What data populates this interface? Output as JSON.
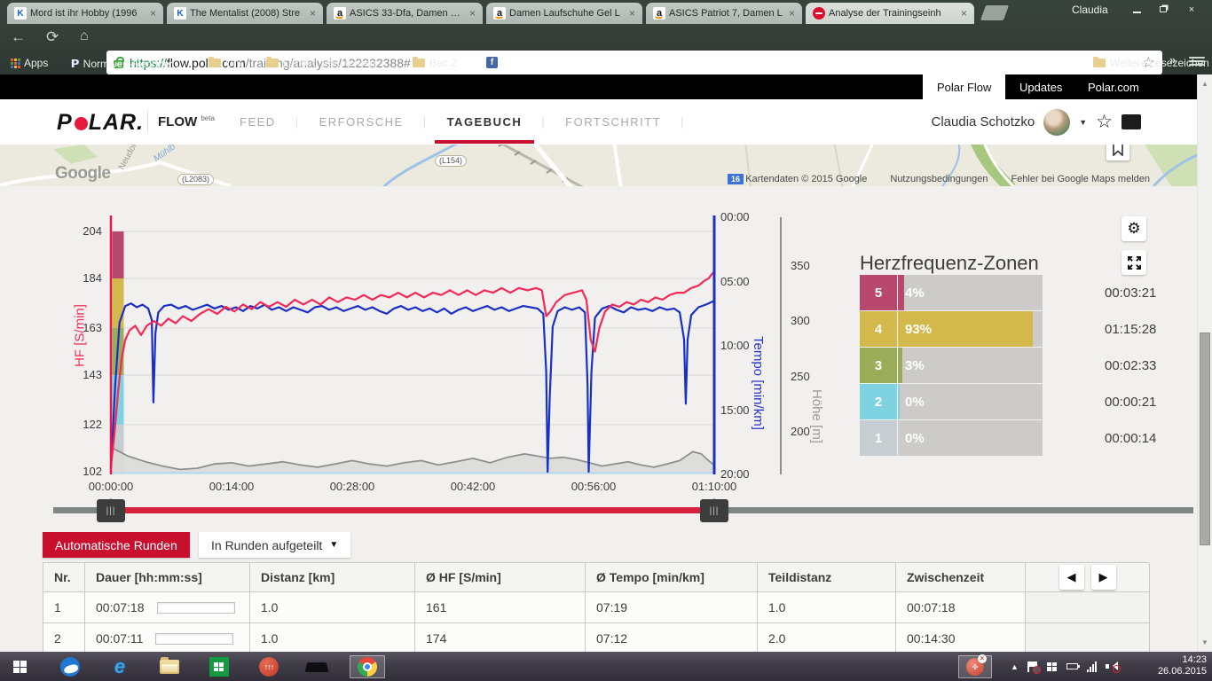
{
  "browser": {
    "tabs": [
      {
        "title": "Mord ist ihr Hobby (1996",
        "icon": "k-icon"
      },
      {
        "title": "The Mentalist (2008) Stre",
        "icon": "k-icon"
      },
      {
        "title": "ASICS 33-Dfa, Damen Lau",
        "icon": "amazon-icon"
      },
      {
        "title": "Damen Laufschuhe Gel L",
        "icon": "amazon-icon"
      },
      {
        "title": "ASICS Patriot 7, Damen L",
        "icon": "amazon-icon"
      },
      {
        "title": "Analyse der Trainingseinh",
        "icon": "polar-icon"
      }
    ],
    "profile_name": "Claudia",
    "url": {
      "scheme": "https://",
      "host": "flow.polar.com",
      "path": "/training/analysis/122232388#"
    },
    "bookmarks": {
      "apps": "Apps",
      "items": [
        "Normwert-Rechner ...",
        "Uni",
        "Lenovo Recommen...",
        "Bac 2"
      ],
      "more": "Weitere Lesezeichen"
    }
  },
  "site_topbar": {
    "links": [
      "Polar Flow",
      "Updates",
      "Polar.com"
    ],
    "active": "Polar Flow"
  },
  "site_header": {
    "brand_p": "P",
    "brand_lar": "LAR",
    "brand_dot": ".",
    "flow": "FLOW",
    "beta": "beta",
    "nav": [
      "FEED",
      "ERFORSCHE",
      "TAGEBUCH",
      "FORTSCHRITT"
    ],
    "active_nav": "TAGEBUCH",
    "user": "Claudia Schotzko"
  },
  "map": {
    "google": "Google",
    "road_badges": [
      "L2083",
      "L154"
    ],
    "street_labels": [
      "Mühlb",
      "Neudor"
    ],
    "route_badge": "16",
    "attribution": [
      "Kartendaten © 2015 Google",
      "Nutzungsbedingungen",
      "Fehler bei Google Maps melden"
    ]
  },
  "chart_data": {
    "type": "line",
    "x_ticks": [
      "00:00:00",
      "00:14:00",
      "00:28:00",
      "00:42:00",
      "00:56:00",
      "01:10:00"
    ],
    "x_range_seconds": [
      0,
      4200
    ],
    "hf_axis": {
      "label": "HF [S/min]",
      "ticks": [
        204,
        184,
        163,
        143,
        122,
        102
      ]
    },
    "tempo_axis": {
      "label": "Tempo [min/km]",
      "ticks": [
        "00:00",
        "05:00",
        "10:00",
        "15:00",
        "20:00"
      ]
    },
    "elevation_axis": {
      "label": "Höhe [m]",
      "ticks": [
        350,
        300,
        250,
        200
      ]
    },
    "legend_position": "none",
    "grid": true,
    "series": [
      {
        "name": "HF",
        "unit": "S/min",
        "color": "#f22a57",
        "points": [
          [
            0,
            104
          ],
          [
            25,
            118
          ],
          [
            50,
            136
          ],
          [
            75,
            150
          ],
          [
            100,
            158
          ],
          [
            130,
            162
          ],
          [
            170,
            164
          ],
          [
            210,
            160
          ],
          [
            250,
            164
          ],
          [
            300,
            166
          ],
          [
            350,
            164
          ],
          [
            400,
            167
          ],
          [
            450,
            165
          ],
          [
            500,
            168
          ],
          [
            560,
            166
          ],
          [
            620,
            169
          ],
          [
            680,
            171
          ],
          [
            740,
            169
          ],
          [
            800,
            172
          ],
          [
            860,
            170
          ],
          [
            920,
            173
          ],
          [
            980,
            171
          ],
          [
            1040,
            174
          ],
          [
            1100,
            172
          ],
          [
            1160,
            174
          ],
          [
            1220,
            172
          ],
          [
            1280,
            175
          ],
          [
            1340,
            173
          ],
          [
            1400,
            175
          ],
          [
            1460,
            173
          ],
          [
            1520,
            176
          ],
          [
            1580,
            174
          ],
          [
            1640,
            176
          ],
          [
            1700,
            175
          ],
          [
            1760,
            177
          ],
          [
            1820,
            175
          ],
          [
            1880,
            177
          ],
          [
            1940,
            176
          ],
          [
            2000,
            178
          ],
          [
            2060,
            176
          ],
          [
            2120,
            178
          ],
          [
            2180,
            176
          ],
          [
            2240,
            178
          ],
          [
            2300,
            177
          ],
          [
            2360,
            179
          ],
          [
            2420,
            177
          ],
          [
            2480,
            179
          ],
          [
            2540,
            177
          ],
          [
            2600,
            179
          ],
          [
            2660,
            178
          ],
          [
            2720,
            180
          ],
          [
            2780,
            178
          ],
          [
            2840,
            180
          ],
          [
            2900,
            179
          ],
          [
            2960,
            180
          ],
          [
            3000,
            179
          ],
          [
            3030,
            168
          ],
          [
            3060,
            170
          ],
          [
            3100,
            174
          ],
          [
            3160,
            177
          ],
          [
            3220,
            178
          ],
          [
            3280,
            179
          ],
          [
            3310,
            175
          ],
          [
            3340,
            158
          ],
          [
            3370,
            153
          ],
          [
            3400,
            163
          ],
          [
            3440,
            170
          ],
          [
            3490,
            173
          ],
          [
            3540,
            172
          ],
          [
            3590,
            174
          ],
          [
            3640,
            173
          ],
          [
            3690,
            175
          ],
          [
            3740,
            174
          ],
          [
            3790,
            176
          ],
          [
            3840,
            175
          ],
          [
            3890,
            177
          ],
          [
            3940,
            178
          ],
          [
            3990,
            178
          ],
          [
            4040,
            180
          ],
          [
            4090,
            181
          ],
          [
            4130,
            183
          ],
          [
            4160,
            184
          ],
          [
            4185,
            186
          ],
          [
            4200,
            187
          ]
        ]
      },
      {
        "name": "Tempo",
        "unit": "min/km",
        "color": "#1b2fc4",
        "points": [
          [
            0,
            19.5
          ],
          [
            30,
            13
          ],
          [
            60,
            8.2
          ],
          [
            100,
            6.9
          ],
          [
            140,
            6.7
          ],
          [
            180,
            7.0
          ],
          [
            220,
            6.8
          ],
          [
            260,
            7.1
          ],
          [
            285,
            8.0
          ],
          [
            296,
            14.4
          ],
          [
            310,
            9.0
          ],
          [
            330,
            7.4
          ],
          [
            370,
            6.9
          ],
          [
            420,
            6.8
          ],
          [
            470,
            7.1
          ],
          [
            520,
            6.9
          ],
          [
            570,
            7.2
          ],
          [
            620,
            7.0
          ],
          [
            670,
            6.8
          ],
          [
            720,
            7.1
          ],
          [
            770,
            6.9
          ],
          [
            820,
            7.2
          ],
          [
            870,
            7.0
          ],
          [
            920,
            7.3
          ],
          [
            970,
            6.9
          ],
          [
            1020,
            7.1
          ],
          [
            1070,
            6.8
          ],
          [
            1120,
            7.2
          ],
          [
            1170,
            7.0
          ],
          [
            1220,
            7.3
          ],
          [
            1270,
            7.0
          ],
          [
            1320,
            7.2
          ],
          [
            1370,
            7.4
          ],
          [
            1420,
            7.0
          ],
          [
            1470,
            6.9
          ],
          [
            1520,
            7.2
          ],
          [
            1570,
            7.0
          ],
          [
            1620,
            7.3
          ],
          [
            1670,
            7.1
          ],
          [
            1720,
            6.9
          ],
          [
            1770,
            7.2
          ],
          [
            1820,
            7.0
          ],
          [
            1870,
            7.3
          ],
          [
            1920,
            7.5
          ],
          [
            1970,
            7.1
          ],
          [
            2020,
            6.9
          ],
          [
            2070,
            7.2
          ],
          [
            2120,
            7.0
          ],
          [
            2170,
            7.3
          ],
          [
            2220,
            7.1
          ],
          [
            2270,
            7.4
          ],
          [
            2320,
            7.1
          ],
          [
            2370,
            7.5
          ],
          [
            2420,
            7.2
          ],
          [
            2470,
            7.0
          ],
          [
            2520,
            7.3
          ],
          [
            2570,
            7.1
          ],
          [
            2620,
            6.9
          ],
          [
            2670,
            7.2
          ],
          [
            2720,
            7.0
          ],
          [
            2770,
            7.3
          ],
          [
            2820,
            7.1
          ],
          [
            2870,
            6.9
          ],
          [
            2920,
            7.0
          ],
          [
            2970,
            7.1
          ],
          [
            3010,
            7.5
          ],
          [
            3030,
            12.0
          ],
          [
            3040,
            19.8
          ],
          [
            3055,
            14.0
          ],
          [
            3075,
            8.5
          ],
          [
            3110,
            7.3
          ],
          [
            3160,
            7.0
          ],
          [
            3210,
            7.2
          ],
          [
            3260,
            7.0
          ],
          [
            3300,
            7.4
          ],
          [
            3318,
            13.0
          ],
          [
            3326,
            19.8
          ],
          [
            3345,
            12.0
          ],
          [
            3370,
            7.8
          ],
          [
            3420,
            7.1
          ],
          [
            3470,
            6.9
          ],
          [
            3520,
            7.2
          ],
          [
            3570,
            7.4
          ],
          [
            3620,
            7.0
          ],
          [
            3670,
            7.2
          ],
          [
            3720,
            7.1
          ],
          [
            3770,
            7.3
          ],
          [
            3820,
            7.0
          ],
          [
            3870,
            7.2
          ],
          [
            3920,
            7.1
          ],
          [
            3960,
            7.4
          ],
          [
            3990,
            9.5
          ],
          [
            4002,
            14.5
          ],
          [
            4015,
            9.5
          ],
          [
            4040,
            7.6
          ],
          [
            4090,
            7.0
          ],
          [
            4140,
            6.8
          ],
          [
            4200,
            6.5
          ]
        ]
      },
      {
        "name": "Höhe",
        "unit": "m",
        "color": "#8f8f8f",
        "points": [
          [
            0,
            186
          ],
          [
            120,
            178
          ],
          [
            240,
            173
          ],
          [
            360,
            169
          ],
          [
            480,
            166
          ],
          [
            600,
            167
          ],
          [
            720,
            171
          ],
          [
            840,
            172
          ],
          [
            960,
            169
          ],
          [
            1080,
            171
          ],
          [
            1200,
            173
          ],
          [
            1320,
            170
          ],
          [
            1440,
            168
          ],
          [
            1560,
            171
          ],
          [
            1680,
            174
          ],
          [
            1800,
            171
          ],
          [
            1920,
            169
          ],
          [
            2040,
            172
          ],
          [
            2160,
            174
          ],
          [
            2280,
            170
          ],
          [
            2400,
            173
          ],
          [
            2520,
            176
          ],
          [
            2640,
            172
          ],
          [
            2760,
            177
          ],
          [
            2880,
            180
          ],
          [
            2970,
            178
          ],
          [
            3060,
            176
          ],
          [
            3150,
            177
          ],
          [
            3240,
            175
          ],
          [
            3330,
            172
          ],
          [
            3420,
            169
          ],
          [
            3510,
            171
          ],
          [
            3600,
            173
          ],
          [
            3690,
            170
          ],
          [
            3780,
            168
          ],
          [
            3870,
            171
          ],
          [
            3960,
            174
          ],
          [
            4050,
            182
          ],
          [
            4110,
            180
          ],
          [
            4160,
            174
          ],
          [
            4200,
            170
          ]
        ]
      }
    ]
  },
  "zones": {
    "title": "Herzfrequenz-Zonen",
    "rows": [
      {
        "zone": "5",
        "pct": "4%",
        "pct_val": 4,
        "time": "00:03:21",
        "color": "#b9486e"
      },
      {
        "zone": "4",
        "pct": "93%",
        "pct_val": 93,
        "time": "01:15:28",
        "color": "#d3b94b"
      },
      {
        "zone": "3",
        "pct": "3%",
        "pct_val": 3,
        "time": "00:02:33",
        "color": "#9cad59"
      },
      {
        "zone": "2",
        "pct": "0%",
        "pct_val": 0,
        "time": "00:00:21",
        "color": "#7fd2df"
      },
      {
        "zone": "1",
        "pct": "0%",
        "pct_val": 0,
        "time": "00:00:14",
        "color": "#c6ced1"
      }
    ]
  },
  "laps": {
    "button_auto": "Automatische Runden",
    "dropdown": "In Runden aufgeteilt",
    "headers": [
      "Nr.",
      "Dauer [hh:mm:ss]",
      "Distanz [km]",
      "Ø HF [S/min]",
      "Ø Tempo [min/km]",
      "Teildistanz",
      "Zwischenzeit"
    ],
    "rows": [
      {
        "nr": "1",
        "dauer": "00:07:18",
        "distanz": "1.0",
        "hf": "161",
        "tempo": "07:19",
        "teildistanz": "1.0",
        "zwischenzeit": "00:07:18"
      },
      {
        "nr": "2",
        "dauer": "00:07:11",
        "distanz": "1.0",
        "hf": "174",
        "tempo": "07:12",
        "teildistanz": "2.0",
        "zwischenzeit": "00:14:30"
      }
    ]
  },
  "taskbar": {
    "time": "14:23",
    "date": "26.06.2015"
  }
}
